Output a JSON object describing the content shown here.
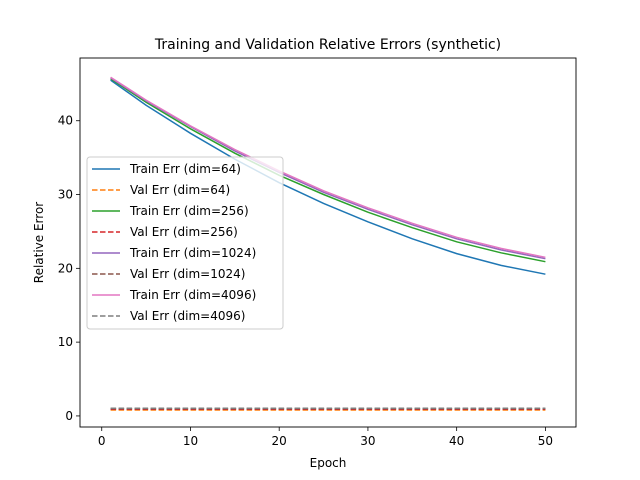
{
  "chart_data": {
    "type": "line",
    "title": "Training and Validation Relative Errors (synthetic)",
    "xlabel": "Epoch",
    "ylabel": "Relative Error",
    "xlim": [
      -2.45,
      53.45
    ],
    "ylim": [
      -1.5,
      48.5
    ],
    "xticks": [
      0,
      10,
      20,
      30,
      40,
      50
    ],
    "yticks": [
      0,
      10,
      20,
      30,
      40
    ],
    "grid": false,
    "legend_position": "center-left",
    "x": [
      1,
      5,
      10,
      15,
      20,
      25,
      30,
      35,
      40,
      45,
      50
    ],
    "series": [
      {
        "name": "Train Err (dim=64)",
        "color": "#1f77b4",
        "dash": "solid",
        "values": [
          45.5,
          42.1,
          38.3,
          34.8,
          31.6,
          28.8,
          26.3,
          24.0,
          22.0,
          20.4,
          19.2
        ]
      },
      {
        "name": "Val Err (dim=64)",
        "color": "#ff7f0e",
        "dash": "dashed",
        "values": [
          0.8,
          0.8,
          0.8,
          0.8,
          0.8,
          0.8,
          0.8,
          0.8,
          0.8,
          0.8,
          0.8
        ]
      },
      {
        "name": "Train Err (dim=256)",
        "color": "#2ca02c",
        "dash": "solid",
        "values": [
          45.7,
          42.5,
          38.9,
          35.6,
          32.6,
          30.0,
          27.6,
          25.5,
          23.6,
          22.1,
          20.9
        ]
      },
      {
        "name": "Val Err (dim=256)",
        "color": "#d62728",
        "dash": "dashed",
        "values": [
          0.9,
          0.9,
          0.9,
          0.9,
          0.9,
          0.9,
          0.9,
          0.9,
          0.9,
          0.9,
          0.9
        ]
      },
      {
        "name": "Train Err (dim=1024)",
        "color": "#9467bd",
        "dash": "solid",
        "values": [
          45.8,
          42.7,
          39.2,
          35.9,
          33.0,
          30.3,
          28.0,
          25.9,
          24.0,
          22.5,
          21.3
        ]
      },
      {
        "name": "Val Err (dim=1024)",
        "color": "#8c564b",
        "dash": "dashed",
        "values": [
          1.0,
          1.0,
          1.0,
          1.0,
          1.0,
          1.0,
          1.0,
          1.0,
          1.0,
          1.0,
          1.0
        ]
      },
      {
        "name": "Train Err (dim=4096)",
        "color": "#e377c2",
        "dash": "solid",
        "values": [
          45.9,
          42.8,
          39.3,
          36.1,
          33.2,
          30.5,
          28.2,
          26.1,
          24.2,
          22.7,
          21.5
        ]
      },
      {
        "name": "Val Err (dim=4096)",
        "color": "#7f7f7f",
        "dash": "dashed",
        "values": [
          1.05,
          1.05,
          1.05,
          1.05,
          1.05,
          1.05,
          1.05,
          1.05,
          1.05,
          1.05,
          1.05
        ]
      }
    ]
  }
}
